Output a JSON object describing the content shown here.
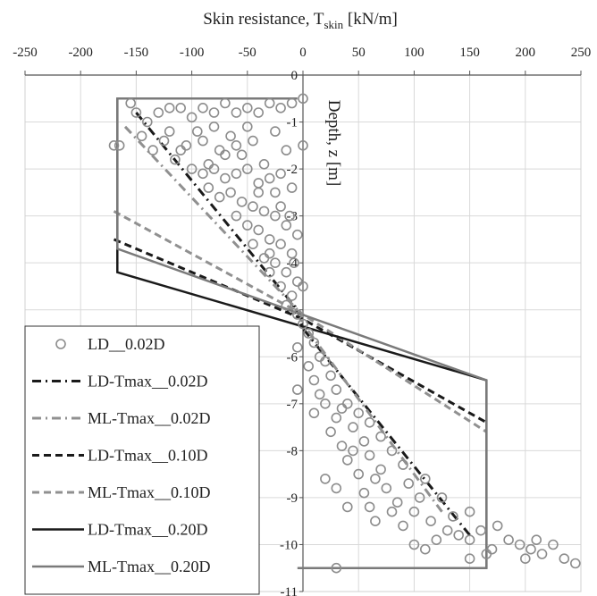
{
  "chart_data": {
    "type": "scatter",
    "title": "",
    "xlabel": "Skin resistance, T",
    "xlabel_sub": "skin",
    "xlabel_unit": " [kN/m]",
    "ylabel": "Depth, z [m]",
    "xlim": [
      -250,
      250
    ],
    "ylim": [
      -11,
      0
    ],
    "x_ticks": [
      -250,
      -200,
      -150,
      -100,
      -50,
      0,
      50,
      100,
      150,
      200,
      250
    ],
    "y_ticks": [
      0,
      -1,
      -2,
      -3,
      -4,
      -5,
      -6,
      -7,
      -8,
      -9,
      -10,
      -11
    ],
    "grid": true,
    "legend_position": "bottom-left",
    "scatter_series": {
      "name": "LD__0.02D",
      "color": "#8c8c8c",
      "points": [
        [
          -165,
          -1.5
        ],
        [
          -170,
          -1.5
        ],
        [
          -155,
          -0.6
        ],
        [
          -150,
          -0.8
        ],
        [
          -140,
          -1.0
        ],
        [
          -130,
          -0.8
        ],
        [
          -120,
          -1.2
        ],
        [
          -110,
          -0.7
        ],
        [
          -100,
          -0.9
        ],
        [
          -90,
          -0.7
        ],
        [
          -80,
          -0.8
        ],
        [
          -70,
          -0.6
        ],
        [
          -60,
          -0.8
        ],
        [
          -50,
          -0.7
        ],
        [
          -40,
          -0.8
        ],
        [
          -30,
          -0.6
        ],
        [
          -20,
          -0.7
        ],
        [
          -10,
          -0.6
        ],
        [
          0,
          -0.5
        ],
        [
          0,
          -1.5
        ],
        [
          -145,
          -1.3
        ],
        [
          -135,
          -1.6
        ],
        [
          -125,
          -1.4
        ],
        [
          -115,
          -1.8
        ],
        [
          -105,
          -1.5
        ],
        [
          -95,
          -1.2
        ],
        [
          -85,
          -1.9
        ],
        [
          -75,
          -1.6
        ],
        [
          -65,
          -1.3
        ],
        [
          -55,
          -1.7
        ],
        [
          -45,
          -1.4
        ],
        [
          -35,
          -1.9
        ],
        [
          -25,
          -1.2
        ],
        [
          -15,
          -1.6
        ],
        [
          -100,
          -2.0
        ],
        [
          -90,
          -2.1
        ],
        [
          -80,
          -2.0
        ],
        [
          -70,
          -2.2
        ],
        [
          -60,
          -2.1
        ],
        [
          -50,
          -2.0
        ],
        [
          -40,
          -2.3
        ],
        [
          -30,
          -2.2
        ],
        [
          -20,
          -2.1
        ],
        [
          -10,
          -2.4
        ],
        [
          -85,
          -2.4
        ],
        [
          -75,
          -2.6
        ],
        [
          -65,
          -2.5
        ],
        [
          -55,
          -2.7
        ],
        [
          -45,
          -2.8
        ],
        [
          -35,
          -2.9
        ],
        [
          -25,
          -3.0
        ],
        [
          -15,
          -3.2
        ],
        [
          -5,
          -3.4
        ],
        [
          -60,
          -3.0
        ],
        [
          -50,
          -3.2
        ],
        [
          -40,
          -3.3
        ],
        [
          -30,
          -3.5
        ],
        [
          -20,
          -3.6
        ],
        [
          -10,
          -3.8
        ],
        [
          -45,
          -3.6
        ],
        [
          -35,
          -3.9
        ],
        [
          -25,
          -4.0
        ],
        [
          -15,
          -4.2
        ],
        [
          -5,
          -4.4
        ],
        [
          -30,
          -4.2
        ],
        [
          -20,
          -4.5
        ],
        [
          -10,
          -4.7
        ],
        [
          -15,
          -4.9
        ],
        [
          -5,
          -5.1
        ],
        [
          0,
          -5.3
        ],
        [
          5,
          -5.5
        ],
        [
          10,
          -5.7
        ],
        [
          -5,
          -5.8
        ],
        [
          15,
          -6.0
        ],
        [
          5,
          -6.2
        ],
        [
          20,
          -6.1
        ],
        [
          10,
          -6.5
        ],
        [
          25,
          -6.4
        ],
        [
          -5,
          -6.7
        ],
        [
          15,
          -6.8
        ],
        [
          30,
          -6.7
        ],
        [
          20,
          -7.0
        ],
        [
          40,
          -7.0
        ],
        [
          10,
          -7.2
        ],
        [
          30,
          -7.3
        ],
        [
          50,
          -7.2
        ],
        [
          25,
          -7.6
        ],
        [
          45,
          -7.5
        ],
        [
          60,
          -7.4
        ],
        [
          35,
          -7.9
        ],
        [
          55,
          -7.8
        ],
        [
          70,
          -7.7
        ],
        [
          40,
          -8.2
        ],
        [
          60,
          -8.1
        ],
        [
          80,
          -8.0
        ],
        [
          50,
          -8.5
        ],
        [
          70,
          -8.4
        ],
        [
          90,
          -8.3
        ],
        [
          20,
          -8.6
        ],
        [
          30,
          -8.8
        ],
        [
          55,
          -8.9
        ],
        [
          75,
          -8.8
        ],
        [
          95,
          -8.7
        ],
        [
          110,
          -8.6
        ],
        [
          40,
          -9.2
        ],
        [
          60,
          -9.2
        ],
        [
          85,
          -9.1
        ],
        [
          105,
          -9.0
        ],
        [
          125,
          -9.0
        ],
        [
          65,
          -9.5
        ],
        [
          90,
          -9.6
        ],
        [
          115,
          -9.5
        ],
        [
          135,
          -9.4
        ],
        [
          150,
          -9.3
        ],
        [
          100,
          -10.0
        ],
        [
          120,
          -9.9
        ],
        [
          140,
          -9.8
        ],
        [
          160,
          -9.7
        ],
        [
          175,
          -9.6
        ],
        [
          185,
          -9.9
        ],
        [
          195,
          -10.0
        ],
        [
          205,
          -10.1
        ],
        [
          215,
          -10.2
        ],
        [
          225,
          -10.0
        ],
        [
          235,
          -10.3
        ],
        [
          245,
          -10.4
        ],
        [
          165,
          -10.2
        ],
        [
          150,
          -10.3
        ],
        [
          30,
          -10.5
        ],
        [
          -80,
          -1.1
        ],
        [
          -110,
          -1.6
        ],
        [
          -50,
          -1.1
        ],
        [
          -70,
          -1.7
        ],
        [
          -40,
          -2.5
        ],
        [
          -20,
          -2.8
        ],
        [
          -30,
          -3.8
        ],
        [
          0,
          -4.5
        ],
        [
          35,
          -7.1
        ],
        [
          65,
          -8.6
        ],
        [
          45,
          -8.0
        ],
        [
          80,
          -9.3
        ],
        [
          100,
          -9.3
        ],
        [
          130,
          -9.7
        ],
        [
          110,
          -10.1
        ],
        [
          150,
          -9.9
        ],
        [
          170,
          -10.1
        ],
        [
          200,
          -10.3
        ],
        [
          210,
          -9.9
        ],
        [
          -120,
          -0.7
        ],
        [
          -90,
          -1.4
        ],
        [
          -60,
          -1.5
        ],
        [
          -25,
          -2.5
        ],
        [
          -12,
          -3.0
        ],
        [
          -8,
          -4.0
        ]
      ]
    },
    "series": [
      {
        "name": "LD-Tmax__0.02D",
        "color": "#1a1a1a",
        "dash": "10,5,2,5",
        "width": 3,
        "points": [
          [
            -150,
            -0.8
          ],
          [
            -5,
            -5.0
          ],
          [
            0,
            -5.4
          ],
          [
            150,
            -9.8
          ]
        ]
      },
      {
        "name": "ML-Tmax__0.02D",
        "color": "#909090",
        "dash": "10,5,2,5",
        "width": 3,
        "points": [
          [
            -160,
            -1.1
          ],
          [
            -5,
            -5.0
          ],
          [
            0,
            -5.3
          ],
          [
            125,
            -9.3
          ]
        ]
      },
      {
        "name": "LD-Tmax__0.10D",
        "color": "#1a1a1a",
        "dash": "8,5",
        "width": 3,
        "points": [
          [
            -170,
            -3.5
          ],
          [
            0,
            -5.2
          ],
          [
            165,
            -7.4
          ]
        ]
      },
      {
        "name": "ML-Tmax__0.10D",
        "color": "#909090",
        "dash": "8,5",
        "width": 3,
        "points": [
          [
            -170,
            -2.9
          ],
          [
            0,
            -5.1
          ],
          [
            165,
            -7.6
          ]
        ]
      },
      {
        "name": "LD-Tmax__0.20D",
        "color": "#1a1a1a",
        "dash": "",
        "width": 2.5,
        "points": [
          [
            -167,
            -0.5
          ],
          [
            -167,
            -4.2
          ],
          [
            165,
            -6.5
          ],
          [
            165,
            -10.5
          ]
        ]
      },
      {
        "name": "ML-Tmax__0.20D",
        "color": "#7a7a7a",
        "dash": "",
        "width": 2.5,
        "points": [
          [
            -167,
            -0.5
          ],
          [
            -5,
            -0.5
          ],
          [
            -167,
            -0.5
          ],
          [
            -167,
            -3.7
          ],
          [
            165,
            -6.5
          ],
          [
            165,
            -10.5
          ],
          [
            -5,
            -10.5
          ]
        ]
      }
    ]
  }
}
